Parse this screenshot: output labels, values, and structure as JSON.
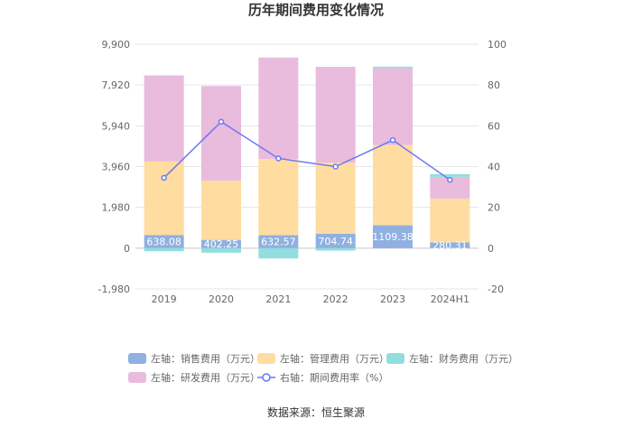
{
  "chart_data": {
    "type": "bar",
    "stacked": true,
    "title": "历年期间费用变化情况",
    "categories": [
      "2019",
      "2020",
      "2021",
      "2022",
      "2023",
      "2024H1"
    ],
    "y_left": {
      "ticks": [
        "9,900",
        "7,920",
        "5,940",
        "3,960",
        "1,980",
        "0",
        "-1,980"
      ],
      "range": [
        -1980,
        9900
      ]
    },
    "y_right": {
      "ticks": [
        "100",
        "80",
        "60",
        "40",
        "20",
        "0",
        "-20"
      ],
      "range": [
        -20,
        100
      ]
    },
    "series": [
      {
        "name": "左轴：销售费用（万元）",
        "axis": "left",
        "kind": "bar",
        "values": [
          638.08,
          402.25,
          632.57,
          704.74,
          1109.38,
          280.31
        ],
        "labels": [
          "638.08",
          "402.25",
          "632.57",
          "704.74",
          "1109.38",
          "280.31"
        ]
      },
      {
        "name": "左轴：管理费用（万元）",
        "axis": "left",
        "kind": "bar",
        "values": [
          3570,
          2880,
          3690,
          3450,
          3900,
          2130
        ]
      },
      {
        "name": "左轴：财务费用（万元）",
        "axis": "left",
        "kind": "bar",
        "values": [
          -150,
          -220,
          -500,
          -120,
          70,
          130
        ]
      },
      {
        "name": "左轴：研发费用（万元）",
        "axis": "left",
        "kind": "bar",
        "values": [
          4180,
          4590,
          4930,
          4650,
          3730,
          1050
        ]
      },
      {
        "name": "右轴：期间费用率（%）",
        "axis": "right",
        "kind": "line",
        "values": [
          34.5,
          62.0,
          44.0,
          40.0,
          53.0,
          33.5
        ]
      }
    ],
    "colors": [
      "#8fb0e0",
      "#ffdca0",
      "#92dede",
      "#e9bbdd",
      "#6c78f0"
    ],
    "legend_position": "bottom",
    "grid": true
  },
  "source": "数据来源：恒生聚源"
}
